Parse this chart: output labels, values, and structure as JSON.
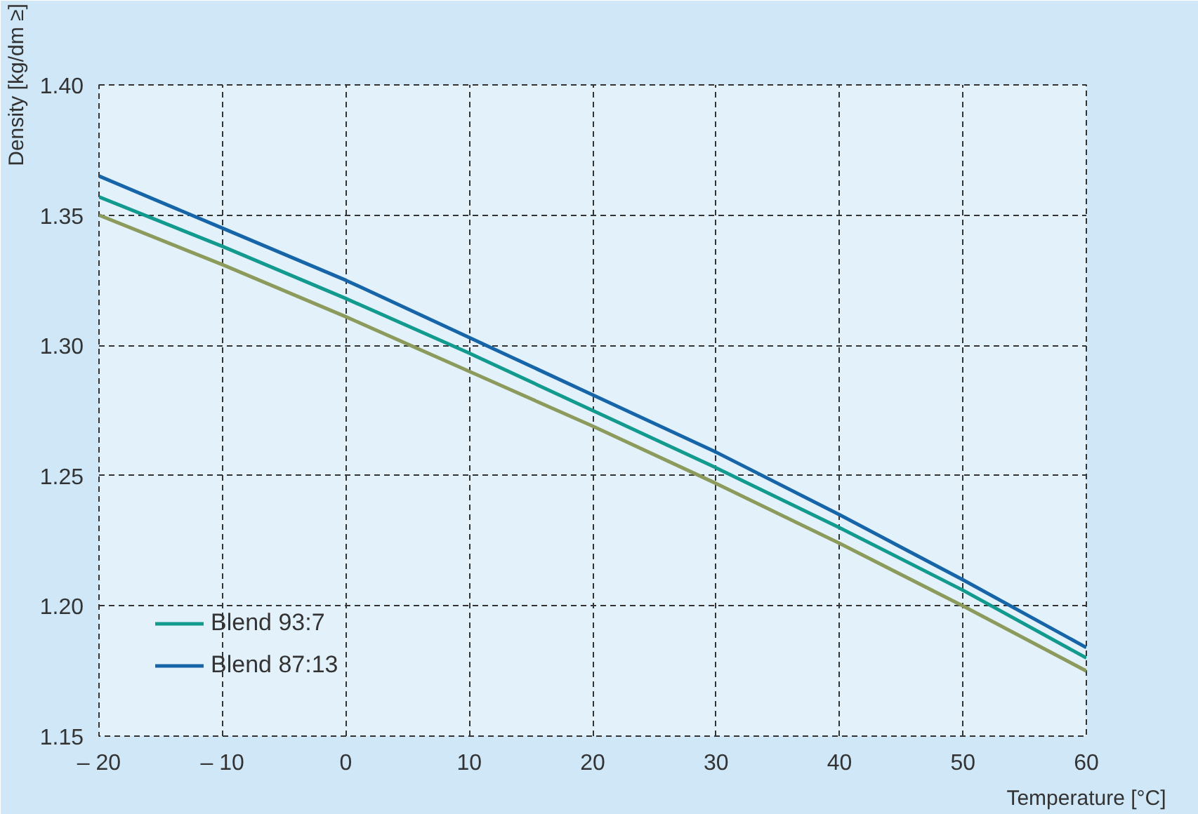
{
  "chart_data": {
    "type": "line",
    "xlabel": "Temperature [°C]",
    "ylabel": "Density [kg/dm ≥]",
    "x": [
      -20,
      -10,
      0,
      10,
      20,
      30,
      40,
      50,
      60
    ],
    "series": [
      {
        "color": "#8c9a5b",
        "values": [
          1.35,
          1.331,
          1.311,
          1.29,
          1.269,
          1.247,
          1.224,
          1.2,
          1.175
        ]
      },
      {
        "name": "Blend 93:7",
        "color": "#139a8e",
        "values": [
          1.357,
          1.338,
          1.318,
          1.297,
          1.275,
          1.253,
          1.23,
          1.206,
          1.18
        ]
      },
      {
        "name": "Blend 87:13",
        "color": "#1565a8",
        "values": [
          1.365,
          1.345,
          1.325,
          1.303,
          1.281,
          1.259,
          1.235,
          1.21,
          1.184
        ]
      }
    ],
    "xlim": [
      -20,
      60
    ],
    "ylim": [
      1.15,
      1.4
    ],
    "xticks": [
      {
        "value": -20,
        "label": "– 20"
      },
      {
        "value": -10,
        "label": "– 10"
      },
      0,
      10,
      20,
      30,
      40,
      50,
      60
    ],
    "yticks": [
      {
        "value": 1.15,
        "label": "1.15"
      },
      {
        "value": 1.2,
        "label": "1.20"
      },
      {
        "value": 1.25,
        "label": "1.25"
      },
      {
        "value": 1.3,
        "label": "1.30"
      },
      {
        "value": 1.35,
        "label": "1.35"
      },
      {
        "value": 1.4,
        "label": "1.40"
      }
    ],
    "grid": true,
    "legend": "bottom left",
    "line_style": "solid",
    "marker": "none"
  }
}
